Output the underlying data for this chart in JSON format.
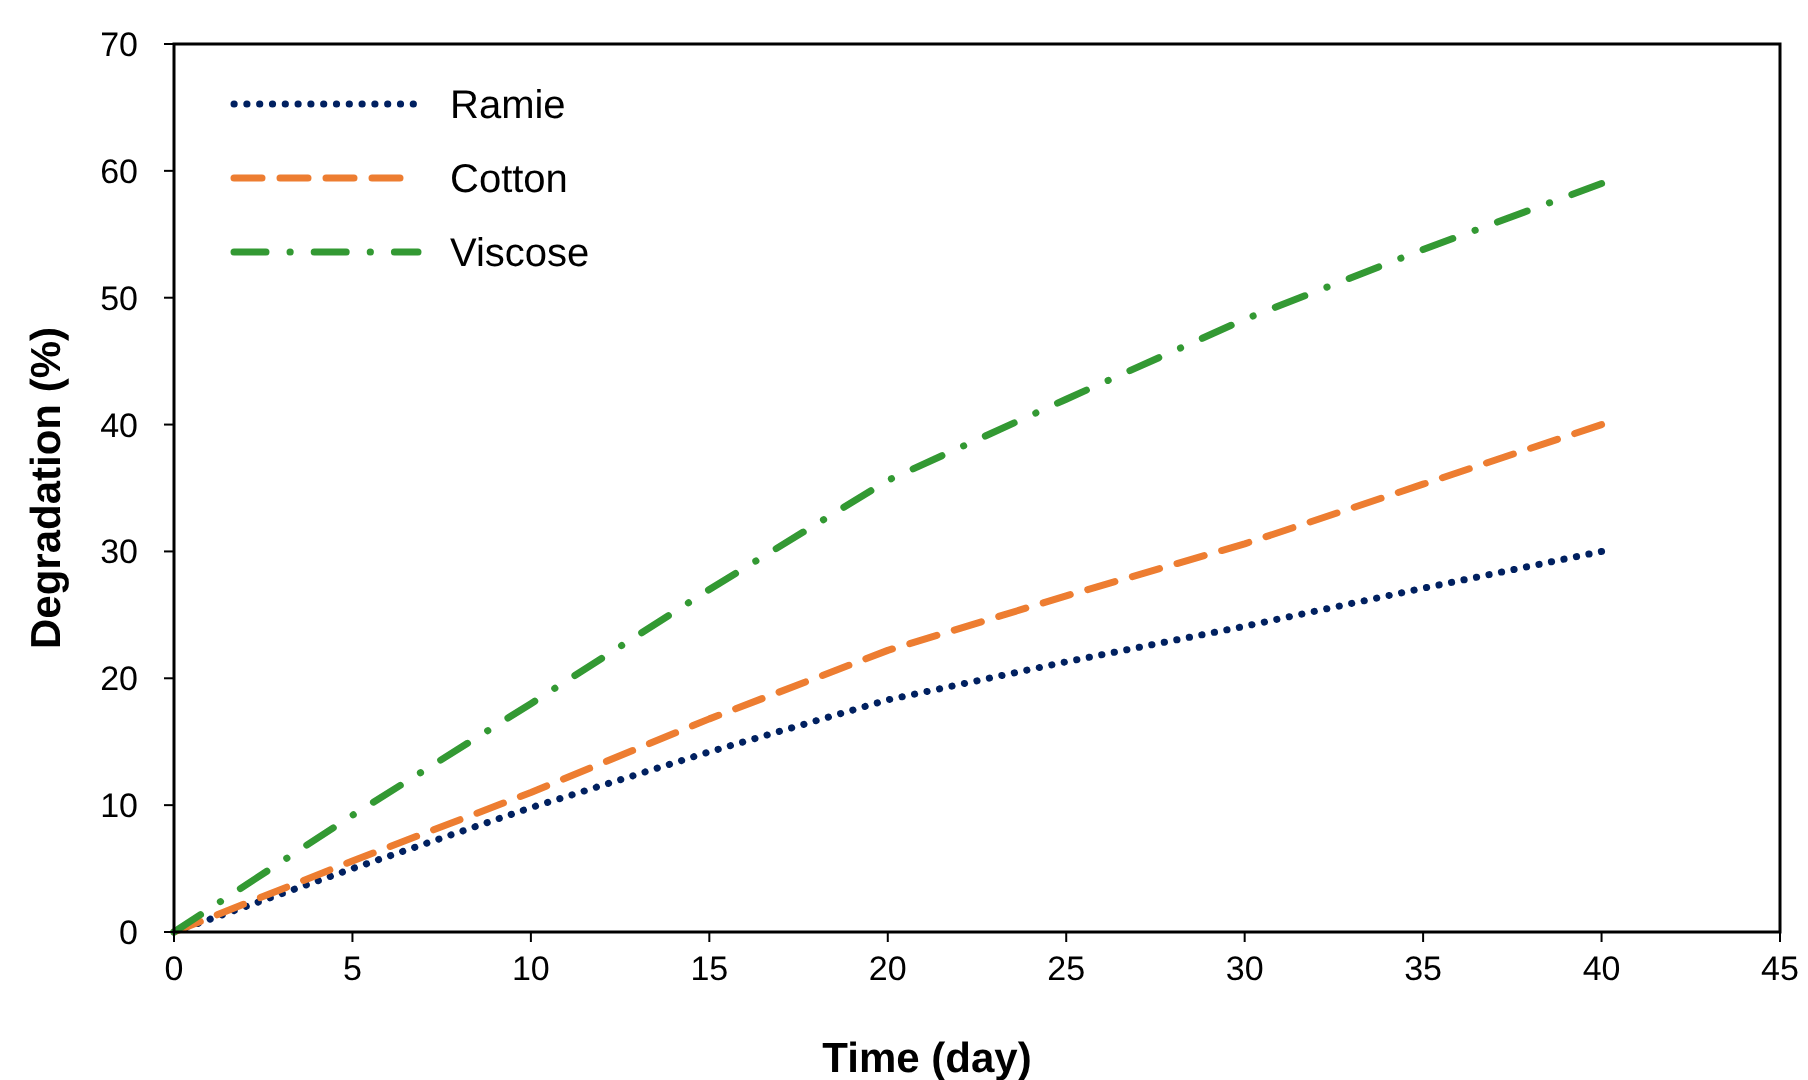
{
  "chart_data": {
    "type": "line",
    "xlabel": "Time (day)",
    "ylabel": "Degradation (%)",
    "x": [
      0,
      5,
      10,
      15,
      20,
      25,
      30,
      35,
      40
    ],
    "series": [
      {
        "name": "Ramie",
        "color": "#002060",
        "line_style": "dotted",
        "values": [
          0,
          5.0,
          9.8,
          14.2,
          18.3,
          21.3,
          24.1,
          27.1,
          30
        ]
      },
      {
        "name": "Cotton",
        "color": "#ed7d31",
        "line_style": "dashed",
        "values": [
          0,
          5.6,
          11,
          16.8,
          22.2,
          26.5,
          30.6,
          35.3,
          40
        ]
      },
      {
        "name": "Viscose",
        "color": "#339933",
        "line_style": "dashdot",
        "values": [
          0,
          9.2,
          18,
          27,
          35.6,
          42,
          48.3,
          53.8,
          59
        ]
      }
    ],
    "xlim": [
      0,
      45
    ],
    "xticks": [
      0,
      5,
      10,
      15,
      20,
      25,
      30,
      35,
      40,
      45
    ],
    "ylim": [
      0,
      70
    ],
    "yticks": [
      0,
      10,
      20,
      30,
      40,
      50,
      60,
      70
    ],
    "grid": false,
    "legend": "top left",
    "marker": "none"
  }
}
